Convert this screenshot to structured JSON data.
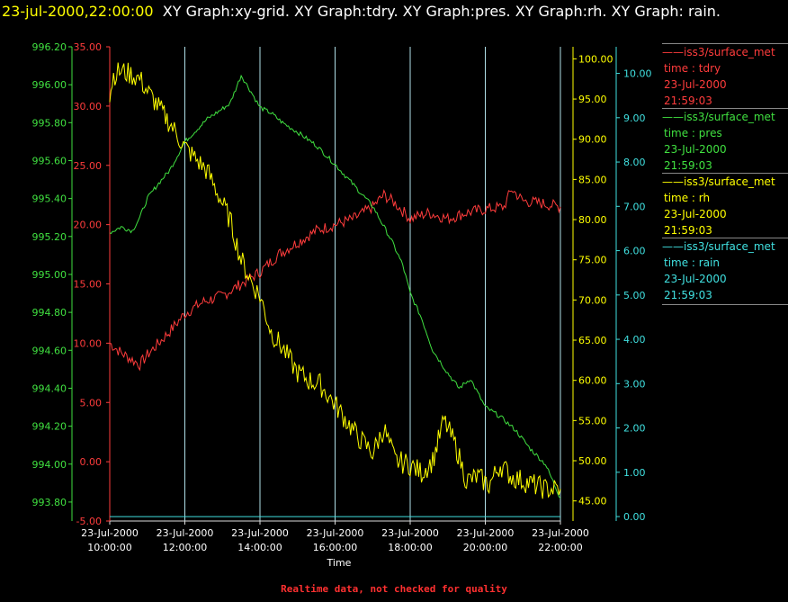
{
  "header": {
    "timestamp": "23-jul-2000,22:00:00",
    "graphs": "XY Graph:xy-grid.  XY Graph:tdry.  XY Graph:pres.  XY Graph:rh.  XY Graph: rain."
  },
  "footer_note": "Realtime data, not checked for quality",
  "colors": {
    "tdry": "#ff3c3c",
    "pres": "#40e040",
    "rh": "#ffff00",
    "rain": "#40e0e0",
    "grid": "#b0e0e8",
    "background": "#000000"
  },
  "legend": [
    {
      "source": "iss3/surface_met",
      "field": "time : tdry",
      "date": "23-Jul-2000",
      "time": "21:59:03",
      "color": "#ff3c3c"
    },
    {
      "source": "iss3/surface_met",
      "field": "time : pres",
      "date": "23-Jul-2000",
      "time": "21:59:03",
      "color": "#40e040"
    },
    {
      "source": "iss3/surface_met",
      "field": "time : rh",
      "date": "23-Jul-2000",
      "time": "21:59:03",
      "color": "#ffff00"
    },
    {
      "source": "iss3/surface_met",
      "field": "time : rain",
      "date": "23-Jul-2000",
      "time": "21:59:03",
      "color": "#40e0e0"
    }
  ],
  "chart_data": {
    "type": "line",
    "xlabel": "Time",
    "x_ticks": [
      {
        "date": "23-Jul-2000",
        "time": "10:00:00",
        "hour": 10
      },
      {
        "date": "23-Jul-2000",
        "time": "12:00:00",
        "hour": 12
      },
      {
        "date": "23-Jul-2000",
        "time": "14:00:00",
        "hour": 14
      },
      {
        "date": "23-Jul-2000",
        "time": "16:00:00",
        "hour": 16
      },
      {
        "date": "23-Jul-2000",
        "time": "18:00:00",
        "hour": 18
      },
      {
        "date": "23-Jul-2000",
        "time": "20:00:00",
        "hour": 20
      },
      {
        "date": "23-Jul-2000",
        "time": "22:00:00",
        "hour": 22
      }
    ],
    "xlim": [
      10,
      22
    ],
    "grid": "vertical",
    "axes": {
      "pres": {
        "ylim": [
          993.7,
          996.2
        ],
        "ticks": [
          "993.80",
          "994.00",
          "994.20",
          "994.40",
          "994.60",
          "994.80",
          "995.00",
          "995.20",
          "995.40",
          "995.60",
          "995.80",
          "996.00",
          "996.20"
        ]
      },
      "tdry": {
        "ylim": [
          -5,
          35
        ],
        "ticks": [
          "-5.00",
          "0.00",
          "5.00",
          "10.00",
          "15.00",
          "20.00",
          "25.00",
          "30.00",
          "35.00"
        ]
      },
      "rh": {
        "ylim": [
          42.5,
          101.5
        ],
        "ticks": [
          "45.00",
          "50.00",
          "55.00",
          "60.00",
          "65.00",
          "70.00",
          "75.00",
          "80.00",
          "85.00",
          "90.00",
          "95.00",
          "100.00"
        ]
      },
      "rain": {
        "ylim": [
          -0.1,
          10.6
        ],
        "ticks": [
          "0.00",
          "1.00",
          "2.00",
          "3.00",
          "4.00",
          "5.00",
          "6.00",
          "7.00",
          "8.00",
          "9.00",
          "10.00"
        ]
      }
    },
    "series": [
      {
        "name": "iss3/surface_met time : tdry",
        "key": "tdry",
        "x": [
          10.0,
          10.3,
          10.6,
          10.8,
          11.0,
          11.3,
          11.6,
          12.0,
          12.5,
          13.0,
          13.5,
          14.0,
          14.5,
          15.0,
          15.5,
          16.0,
          16.5,
          17.0,
          17.3,
          17.6,
          18.0,
          18.5,
          19.0,
          19.5,
          20.0,
          20.5,
          20.7,
          21.0,
          21.5,
          22.0
        ],
        "y": [
          10.0,
          9.2,
          8.6,
          8.2,
          9.0,
          10.0,
          11.0,
          12.5,
          13.5,
          14.0,
          15.0,
          16.0,
          17.5,
          18.5,
          19.5,
          20.0,
          20.5,
          21.5,
          22.5,
          21.8,
          20.5,
          21.0,
          20.5,
          21.0,
          21.3,
          21.5,
          23.0,
          22.0,
          21.8,
          21.5
        ]
      },
      {
        "name": "iss3/surface_met time : pres",
        "key": "pres",
        "x": [
          10.0,
          10.3,
          10.6,
          10.8,
          11.0,
          11.3,
          11.6,
          12.0,
          12.3,
          12.6,
          12.9,
          13.2,
          13.5,
          13.8,
          14.0,
          14.3,
          14.6,
          15.0,
          15.5,
          16.0,
          16.5,
          17.0,
          17.5,
          17.8,
          18.0,
          18.3,
          18.6,
          19.0,
          19.3,
          19.6,
          20.0,
          20.4,
          20.8,
          21.2,
          21.6,
          22.0
        ],
        "y": [
          995.22,
          995.25,
          995.23,
          995.3,
          995.4,
          995.48,
          995.55,
          995.7,
          995.76,
          995.82,
          995.86,
          995.9,
          996.05,
          995.95,
          995.88,
          995.85,
          995.8,
          995.75,
          995.68,
          995.58,
          995.47,
          995.36,
          995.18,
          995.05,
          994.9,
          994.77,
          994.6,
          994.48,
          994.4,
          994.45,
          994.3,
          994.25,
          994.18,
          994.08,
          994.0,
          993.82
        ]
      },
      {
        "name": "iss3/surface_met time : rh",
        "key": "rh",
        "x": [
          10.0,
          10.1,
          10.3,
          10.6,
          10.8,
          11.0,
          11.3,
          11.6,
          12.0,
          12.3,
          12.6,
          12.9,
          13.2,
          13.5,
          13.8,
          14.0,
          14.3,
          14.6,
          15.0,
          15.3,
          15.6,
          16.0,
          16.3,
          16.6,
          17.0,
          17.3,
          17.6,
          18.0,
          18.3,
          18.6,
          18.9,
          19.2,
          19.5,
          19.8,
          20.1,
          20.4,
          20.7,
          21.0,
          21.3,
          21.6,
          22.0
        ],
        "y": [
          95.5,
          98.0,
          98.5,
          98.0,
          97.5,
          96.0,
          94.0,
          92.0,
          89.0,
          87.5,
          86.0,
          83.0,
          80.0,
          75.0,
          72.0,
          70.5,
          66.0,
          64.0,
          61.0,
          60.0,
          59.5,
          57.0,
          55.0,
          53.0,
          51.0,
          54.0,
          50.0,
          49.5,
          48.5,
          50.0,
          55.0,
          52.0,
          47.5,
          48.0,
          47.0,
          49.5,
          48.0,
          47.5,
          47.0,
          46.5,
          46.5
        ]
      },
      {
        "name": "iss3/surface_met time : rain",
        "key": "rain",
        "x": [
          10.0,
          22.0
        ],
        "y": [
          0.0,
          0.0
        ]
      }
    ]
  }
}
